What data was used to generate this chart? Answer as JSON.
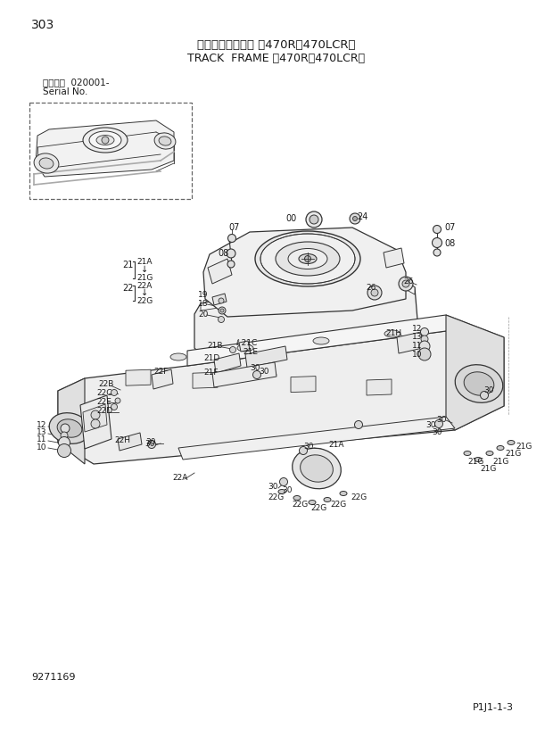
{
  "page_number": "303",
  "title_japanese": "トラックフレーム ＜470R，470LCR＞",
  "title_english": "TRACK  FRAME ＜470R，470LCR＞",
  "serial_label": "適用号機  020001-",
  "serial_label2": "Serial No.",
  "doc_number": "9271169",
  "page_code": "P1J1-1-3",
  "bg_color": "#ffffff",
  "text_color": "#1a1a1a",
  "line_color": "#333333",
  "fig_width": 6.2,
  "fig_height": 8.17,
  "fig_dpi": 100
}
